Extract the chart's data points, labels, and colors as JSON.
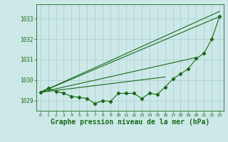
{
  "background_color": "#cce8e8",
  "grid_color": "#aacccc",
  "line_color": "#1a6b1a",
  "title": "Graphe pression niveau de la mer (hPa)",
  "title_fontsize": 7,
  "xlabel_ticks": [
    0,
    1,
    2,
    3,
    4,
    5,
    6,
    7,
    8,
    9,
    10,
    11,
    12,
    13,
    14,
    15,
    16,
    17,
    18,
    19,
    20,
    21,
    22,
    23
  ],
  "ylim": [
    1028.5,
    1033.7
  ],
  "yticks": [
    1029,
    1030,
    1031,
    1032,
    1033
  ],
  "main_series": [
    1029.4,
    1029.6,
    1029.45,
    1029.35,
    1029.2,
    1029.15,
    1029.1,
    1028.85,
    1029.0,
    1028.95,
    1029.35,
    1029.35,
    1029.35,
    1029.1,
    1029.35,
    1029.3,
    1029.65,
    1030.05,
    1030.3,
    1030.55,
    1031.05,
    1031.3,
    1032.0,
    1033.1
  ],
  "straight_lines": [
    [
      0,
      1029.4,
      23,
      1033.35
    ],
    [
      0,
      1029.4,
      23,
      1033.1
    ],
    [
      0,
      1029.4,
      20,
      1031.1
    ],
    [
      0,
      1029.4,
      16,
      1030.15
    ]
  ]
}
